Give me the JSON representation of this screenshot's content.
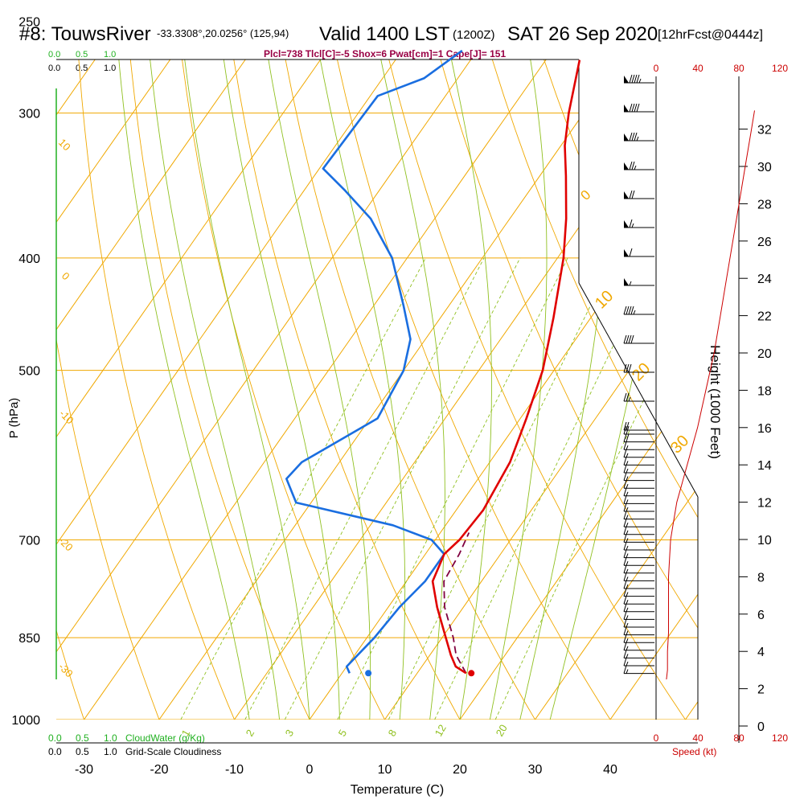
{
  "header": {
    "station": "#8: TouwsRiver",
    "coords": "-33.3308°,20.0256° (125,94)",
    "valid": "Valid 1400 LST",
    "utc": "(1200Z)",
    "date": "SAT 26 Sep 2020",
    "forecast": "[12hrFcst@0444z]"
  },
  "indices": "Plcl=738 Tlcl[C]=-5 Shox=6 Pwat[cm]=1 Cape[J]= 151",
  "cloud_scale": {
    "green_ticks": [
      "0.0",
      "0.5",
      "1.0"
    ],
    "black_ticks": [
      "0.0",
      "0.5",
      "1.0"
    ],
    "cloudwater_label": "CloudWater (g/Kg)",
    "cloudiness_label": "Grid-Scale Cloudiness"
  },
  "speed_scale": {
    "ticks": [
      "0",
      "40",
      "80",
      "120"
    ],
    "label": "Speed (kt)"
  },
  "colors": {
    "isotherm": "#f0a800",
    "dry_adiabat": "#f0a800",
    "moist_adiabat": "#90c020",
    "mixing_ratio": "#90c020",
    "temperature": "#e00000",
    "dewpoint": "#1a6ee0",
    "parcel": "#800040",
    "speed": "#cc0000",
    "cloud": "#20b020",
    "indices": "#990044"
  },
  "chart_data": {
    "type": "skew-t",
    "xlabel": "Temperature (C)",
    "ylabel": "P (hPa)",
    "y2label": "Height (1000 Feet)",
    "x_ticks": [
      -30,
      -20,
      -10,
      0,
      10,
      20,
      30,
      40
    ],
    "p_ticks": [
      250,
      300,
      400,
      500,
      700,
      850,
      1000
    ],
    "height_ticks": [
      0,
      2,
      4,
      6,
      8,
      10,
      12,
      14,
      16,
      18,
      20,
      22,
      24,
      26,
      28,
      30,
      32
    ],
    "isotherm_labels": [
      "0",
      "10",
      "20",
      "30",
      "-10",
      "-20",
      "-30",
      "10",
      "0"
    ],
    "mixing_ratio_labels": [
      "1",
      "2",
      "3",
      "5",
      "8",
      "12",
      "20"
    ],
    "temperature": [
      {
        "p": 912,
        "t": 16.5
      },
      {
        "p": 900,
        "t": 14.5
      },
      {
        "p": 880,
        "t": 12.8
      },
      {
        "p": 850,
        "t": 10.5
      },
      {
        "p": 800,
        "t": 6.5
      },
      {
        "p": 760,
        "t": 3.5
      },
      {
        "p": 720,
        "t": 2.5
      },
      {
        "p": 700,
        "t": 3.2
      },
      {
        "p": 660,
        "t": 3.6
      },
      {
        "p": 600,
        "t": 2.7
      },
      {
        "p": 550,
        "t": 0.8
      },
      {
        "p": 500,
        "t": -1.5
      },
      {
        "p": 450,
        "t": -5.0
      },
      {
        "p": 400,
        "t": -9.2
      },
      {
        "p": 370,
        "t": -12.5
      },
      {
        "p": 340,
        "t": -16.5
      },
      {
        "p": 320,
        "t": -19.5
      },
      {
        "p": 300,
        "t": -22.0
      },
      {
        "p": 270,
        "t": -25.5
      }
    ],
    "dewpoint": [
      {
        "p": 912,
        "t": 1.0
      },
      {
        "p": 900,
        "t": 0.0
      },
      {
        "p": 850,
        "t": 1.0
      },
      {
        "p": 800,
        "t": 1.5
      },
      {
        "p": 760,
        "t": 2.5
      },
      {
        "p": 720,
        "t": 2.5
      },
      {
        "p": 700,
        "t": -0.5
      },
      {
        "p": 680,
        "t": -7.0
      },
      {
        "p": 650,
        "t": -22.0
      },
      {
        "p": 620,
        "t": -25.5
      },
      {
        "p": 600,
        "t": -25.0
      },
      {
        "p": 550,
        "t": -19.0
      },
      {
        "p": 500,
        "t": -20.0
      },
      {
        "p": 470,
        "t": -22.0
      },
      {
        "p": 440,
        "t": -26.0
      },
      {
        "p": 400,
        "t": -32.0
      },
      {
        "p": 370,
        "t": -38.5
      },
      {
        "p": 350,
        "t": -44.5
      },
      {
        "p": 335,
        "t": -49.5
      },
      {
        "p": 290,
        "t": -49.0
      },
      {
        "p": 280,
        "t": -44.5
      },
      {
        "p": 265,
        "t": -42.0
      }
    ],
    "parcel": [
      {
        "p": 912,
        "t": 16.5
      },
      {
        "p": 880,
        "t": 13.5
      },
      {
        "p": 850,
        "t": 11.5
      },
      {
        "p": 800,
        "t": 7.5
      },
      {
        "p": 760,
        "t": 5.0
      },
      {
        "p": 720,
        "t": 4.5
      },
      {
        "p": 690,
        "t": 3.8
      }
    ],
    "surface_temperature": {
      "p": 912,
      "t": 17.2
    },
    "surface_dewpoint": {
      "p": 912,
      "t": 3.5
    },
    "wind_speed_kt": [
      {
        "h": 2.5,
        "s": 10
      },
      {
        "h": 3,
        "s": 11
      },
      {
        "h": 4,
        "s": 11
      },
      {
        "h": 5,
        "s": 12
      },
      {
        "h": 6,
        "s": 12
      },
      {
        "h": 8,
        "s": 12
      },
      {
        "h": 10,
        "s": 14
      },
      {
        "h": 11,
        "s": 17
      },
      {
        "h": 12,
        "s": 20
      },
      {
        "h": 13,
        "s": 25
      },
      {
        "h": 14,
        "s": 30
      },
      {
        "h": 16,
        "s": 40
      },
      {
        "h": 18,
        "s": 48
      },
      {
        "h": 20,
        "s": 56
      },
      {
        "h": 22,
        "s": 62
      },
      {
        "h": 24,
        "s": 68
      },
      {
        "h": 26,
        "s": 74
      },
      {
        "h": 28,
        "s": 80
      },
      {
        "h": 30,
        "s": 86
      },
      {
        "h": 32,
        "s": 92
      },
      {
        "h": 33,
        "s": 95
      }
    ],
    "wind_barbs_kt": [
      95,
      90,
      85,
      75,
      70,
      65,
      60,
      55,
      45,
      40,
      30,
      25,
      20,
      20,
      20,
      15,
      15,
      15,
      15,
      15,
      15,
      15,
      15,
      15,
      15,
      15,
      15,
      15,
      15,
      15,
      15,
      15,
      15,
      15,
      15,
      15,
      15,
      15,
      15,
      15,
      15,
      15,
      15,
      15,
      15
    ]
  }
}
